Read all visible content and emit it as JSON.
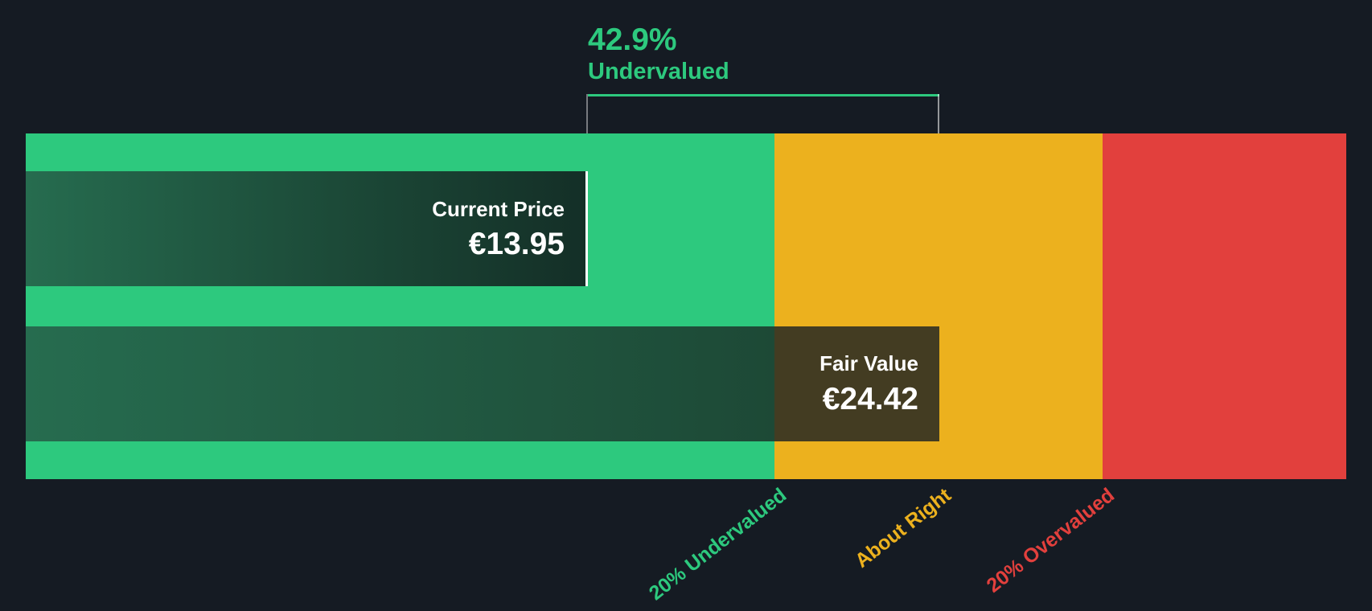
{
  "header": {
    "percent": "42.9%",
    "state": "Undervalued"
  },
  "current_price_marker": {
    "label": "Current Price",
    "value": "€13.95"
  },
  "fair_value_marker": {
    "label": "Fair Value",
    "value": "€24.42"
  },
  "axis_labels": [
    {
      "label": "20% Undervalued",
      "color": "#2dc97e"
    },
    {
      "label": "About Right",
      "color": "#ecb11e"
    },
    {
      "label": "20% Overvalued",
      "color": "#e2403d"
    }
  ],
  "colors": {
    "background": "#151b23",
    "undervalued_zone": "#2dc97e",
    "about_right_zone": "#ecb11e",
    "overvalued_zone": "#e2403d",
    "marker_gradient_start": "#266c4f",
    "marker_gradient_end": "#142f27",
    "fair_value_box": "#433c22",
    "marker_text": "#ffffff"
  },
  "chart_data": {
    "type": "bar",
    "orientation": "horizontal",
    "title": "42.9% Undervalued",
    "series": [
      {
        "name": "Current Price",
        "value": 13.95,
        "unit": "EUR"
      },
      {
        "name": "Fair Value",
        "value": 24.42,
        "unit": "EUR"
      }
    ],
    "discount_percent": 42.9,
    "zones": [
      {
        "label": "20% Undervalued",
        "range_eur": [
          0,
          19.54
        ],
        "color": "#2dc97e"
      },
      {
        "label": "About Right",
        "range_eur": [
          19.54,
          29.3
        ],
        "color": "#ecb11e"
      },
      {
        "label": "20% Overvalued",
        "range_eur": [
          29.3,
          36.5
        ],
        "color": "#e2403d"
      }
    ],
    "legend": "none",
    "grid": false,
    "annotations": [
      "Bracket spanning from current price to fair value labelled 42.9% Undervalued"
    ]
  }
}
